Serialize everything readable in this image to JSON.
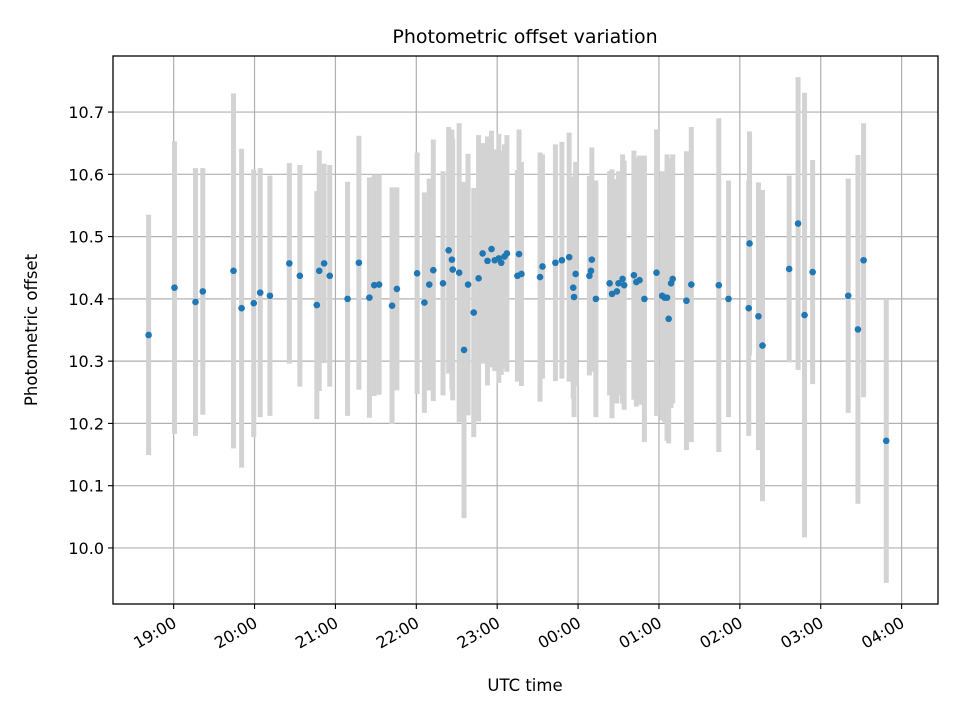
{
  "chart_data": {
    "type": "scatter",
    "title": "Photometric offset variation",
    "xlabel": "UTC time",
    "ylabel": "Photometric offset",
    "grid": true,
    "xlim_hours": [
      18.25,
      28.45
    ],
    "ylim": [
      9.91,
      10.79
    ],
    "x_ticks": [
      {
        "h": 19,
        "label": "19:00"
      },
      {
        "h": 20,
        "label": "20:00"
      },
      {
        "h": 21,
        "label": "21:00"
      },
      {
        "h": 22,
        "label": "22:00"
      },
      {
        "h": 23,
        "label": "23:00"
      },
      {
        "h": 24,
        "label": "00:00"
      },
      {
        "h": 25,
        "label": "01:00"
      },
      {
        "h": 26,
        "label": "02:00"
      },
      {
        "h": 27,
        "label": "03:00"
      },
      {
        "h": 28,
        "label": "04:00"
      }
    ],
    "y_ticks": [
      {
        "v": 10.0,
        "label": "10.0"
      },
      {
        "v": 10.1,
        "label": "10.1"
      },
      {
        "v": 10.2,
        "label": "10.2"
      },
      {
        "v": 10.3,
        "label": "10.3"
      },
      {
        "v": 10.4,
        "label": "10.4"
      },
      {
        "v": 10.5,
        "label": "10.5"
      },
      {
        "v": 10.6,
        "label": "10.6"
      },
      {
        "v": 10.7,
        "label": "10.7"
      }
    ],
    "colors": {
      "point": "#1f77b4",
      "errorbar": "#d3d3d3",
      "grid": "#b0b0b0"
    },
    "series": [
      {
        "name": "Photometric offset",
        "points": [
          [
            18.69,
            10.342,
            0.193
          ],
          [
            19.01,
            10.418,
            0.235
          ],
          [
            19.27,
            10.395,
            0.215
          ],
          [
            19.36,
            10.412,
            0.198
          ],
          [
            19.74,
            10.445,
            0.285
          ],
          [
            19.84,
            10.385,
            0.256
          ],
          [
            19.99,
            10.393,
            0.215
          ],
          [
            20.07,
            10.41,
            0.2
          ],
          [
            20.19,
            10.405,
            0.193
          ],
          [
            20.43,
            10.457,
            0.161
          ],
          [
            20.56,
            10.437,
            0.178
          ],
          [
            20.77,
            10.39,
            0.183
          ],
          [
            20.8,
            10.445,
            0.193
          ],
          [
            20.86,
            10.457,
            0.16
          ],
          [
            20.93,
            10.437,
            0.178
          ],
          [
            21.15,
            10.4,
            0.188
          ],
          [
            21.29,
            10.458,
            0.204
          ],
          [
            21.42,
            10.402,
            0.193
          ],
          [
            21.48,
            10.422,
            0.178
          ],
          [
            21.54,
            10.423,
            0.177
          ],
          [
            21.7,
            10.389,
            0.19
          ],
          [
            21.76,
            10.416,
            0.163
          ],
          [
            22.01,
            10.441,
            0.194
          ],
          [
            22.1,
            10.394,
            0.177
          ],
          [
            22.16,
            10.423,
            0.17
          ],
          [
            22.21,
            10.446,
            0.21
          ],
          [
            22.33,
            10.425,
            0.18
          ],
          [
            22.4,
            10.478,
            0.198
          ],
          [
            22.44,
            10.463,
            0.209
          ],
          [
            22.45,
            10.447,
            0.21
          ],
          [
            22.53,
            10.442,
            0.24
          ],
          [
            22.59,
            10.318,
            0.27
          ],
          [
            22.64,
            10.423,
            0.21
          ],
          [
            22.71,
            10.378,
            0.2
          ],
          [
            22.77,
            10.433,
            0.23
          ],
          [
            22.82,
            10.473,
            0.177
          ],
          [
            22.88,
            10.461,
            0.2
          ],
          [
            22.93,
            10.48,
            0.19
          ],
          [
            22.97,
            10.462,
            0.178
          ],
          [
            23.02,
            10.465,
            0.2
          ],
          [
            23.05,
            10.458,
            0.18
          ],
          [
            23.09,
            10.468,
            0.18
          ],
          [
            23.12,
            10.473,
            0.19
          ],
          [
            23.25,
            10.437,
            0.17
          ],
          [
            23.27,
            10.472,
            0.2
          ],
          [
            23.3,
            10.44,
            0.18
          ],
          [
            23.53,
            10.435,
            0.2
          ],
          [
            23.56,
            10.452,
            0.18
          ],
          [
            23.72,
            10.458,
            0.19
          ],
          [
            23.8,
            10.462,
            0.19
          ],
          [
            23.89,
            10.467,
            0.2
          ],
          [
            23.94,
            10.418,
            0.178
          ],
          [
            23.95,
            10.403,
            0.193
          ],
          [
            23.97,
            10.44,
            0.18
          ],
          [
            24.14,
            10.437,
            0.16
          ],
          [
            24.16,
            10.445,
            0.15
          ],
          [
            24.17,
            10.463,
            0.18
          ],
          [
            24.22,
            10.4,
            0.19
          ],
          [
            24.39,
            10.425,
            0.18
          ],
          [
            24.42,
            10.408,
            0.2
          ],
          [
            24.48,
            10.412,
            0.18
          ],
          [
            24.5,
            10.425,
            0.18
          ],
          [
            24.55,
            10.432,
            0.2
          ],
          [
            24.57,
            10.422,
            0.2
          ],
          [
            24.69,
            10.438,
            0.2
          ],
          [
            24.72,
            10.427,
            0.2
          ],
          [
            24.76,
            10.43,
            0.2
          ],
          [
            24.82,
            10.4,
            0.23
          ],
          [
            24.97,
            10.442,
            0.23
          ],
          [
            25.04,
            10.405,
            0.2
          ],
          [
            25.07,
            10.402,
            0.2
          ],
          [
            25.1,
            10.402,
            0.23
          ],
          [
            25.12,
            10.368,
            0.2
          ],
          [
            25.15,
            10.425,
            0.2
          ],
          [
            25.17,
            10.432,
            0.2
          ],
          [
            25.34,
            10.397,
            0.24
          ],
          [
            25.4,
            10.423,
            0.253
          ],
          [
            25.74,
            10.422,
            0.268
          ],
          [
            25.86,
            10.4,
            0.19
          ],
          [
            26.11,
            10.385,
            0.205
          ],
          [
            26.12,
            10.489,
            0.18
          ],
          [
            26.23,
            10.372,
            0.215
          ],
          [
            26.28,
            10.325,
            0.25
          ],
          [
            26.61,
            10.448,
            0.15
          ],
          [
            26.72,
            10.521,
            0.235
          ],
          [
            26.8,
            10.374,
            0.357
          ],
          [
            26.9,
            10.443,
            0.18
          ],
          [
            27.34,
            10.405,
            0.188
          ],
          [
            27.46,
            10.351,
            0.28
          ],
          [
            27.53,
            10.462,
            0.22
          ],
          [
            27.81,
            10.172,
            0.228
          ]
        ]
      }
    ]
  }
}
